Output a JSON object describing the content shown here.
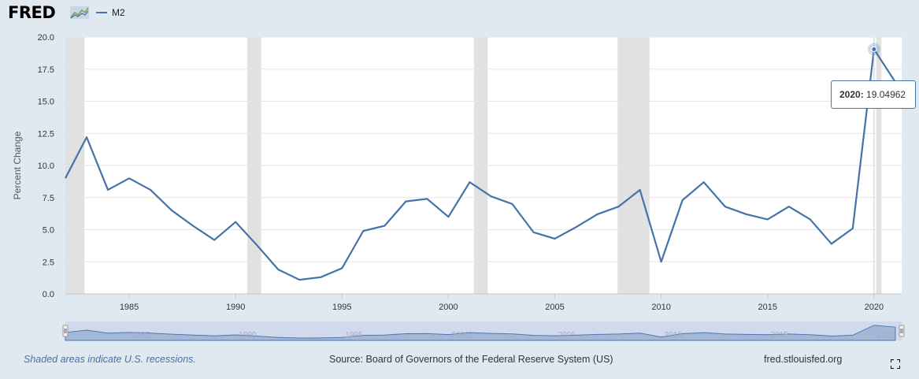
{
  "header": {
    "logo_text": "FRED",
    "logo_icon": "line-chart-icon",
    "legend_label": "M2"
  },
  "chart_data": {
    "type": "line",
    "title": "",
    "xlabel": "",
    "ylabel": "Percent Change",
    "xlim": [
      1982,
      2021.3
    ],
    "ylim": [
      0,
      20
    ],
    "yticks": [
      "0.0",
      "2.5",
      "5.0",
      "7.5",
      "10.0",
      "12.5",
      "15.0",
      "17.5",
      "20.0"
    ],
    "ytick_values": [
      0,
      2.5,
      5,
      7.5,
      10,
      12.5,
      15,
      17.5,
      20
    ],
    "xticks": [
      "1985",
      "1990",
      "1995",
      "2000",
      "2005",
      "2010",
      "2015",
      "2020"
    ],
    "xtick_values": [
      1985,
      1990,
      1995,
      2000,
      2005,
      2010,
      2015,
      2020
    ],
    "recessions": [
      [
        1982.0,
        1982.9
      ],
      [
        1990.55,
        1991.2
      ],
      [
        2001.2,
        2001.85
      ],
      [
        2007.95,
        2009.45
      ],
      [
        2020.1,
        2020.35
      ]
    ],
    "series": [
      {
        "name": "M2",
        "color": "#4572a7",
        "x": [
          1982,
          1983,
          1984,
          1985,
          1986,
          1987,
          1988,
          1989,
          1990,
          1991,
          1992,
          1993,
          1994,
          1995,
          1996,
          1997,
          1998,
          1999,
          2000,
          2001,
          2002,
          2003,
          2004,
          2005,
          2006,
          2007,
          2008,
          2009,
          2010,
          2011,
          2012,
          2013,
          2014,
          2015,
          2016,
          2017,
          2018,
          2019,
          2020,
          2021
        ],
        "values": [
          9.0,
          12.2,
          8.1,
          9.0,
          8.1,
          6.5,
          5.3,
          4.2,
          5.6,
          3.8,
          1.9,
          1.1,
          1.3,
          2.0,
          4.9,
          5.3,
          7.2,
          7.4,
          6.0,
          8.7,
          7.6,
          7.0,
          4.8,
          4.3,
          5.2,
          6.2,
          6.8,
          8.1,
          2.5,
          7.3,
          8.7,
          6.8,
          6.2,
          5.8,
          6.8,
          5.8,
          3.9,
          5.1,
          19.04962,
          16.5
        ]
      }
    ],
    "navigator": {
      "xticks": [
        "1985",
        "1990",
        "1995",
        "2000",
        "2005",
        "2010",
        "2015",
        "2020"
      ]
    },
    "tooltip": {
      "label": "2020:",
      "value": "19.04962",
      "x": 2020
    }
  },
  "footer": {
    "recession_note": "Shaded areas indicate U.S. recessions.",
    "source": "Source: Board of Governors of the Federal Reserve System (US)",
    "site": "fred.stlouisfed.org",
    "fullscreen_icon": "fullscreen-icon"
  }
}
